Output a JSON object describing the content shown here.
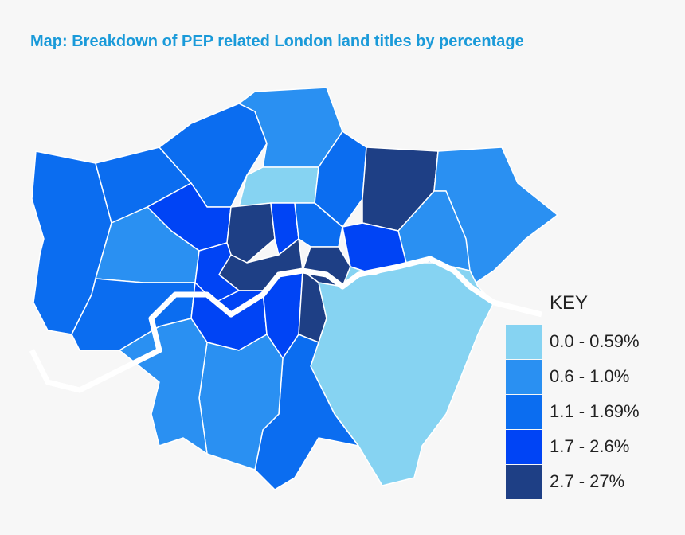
{
  "title": "Map:  Breakdown of PEP related London land titles by percentage",
  "key": {
    "title": "KEY",
    "items": [
      {
        "label": "0.0 - 0.59%",
        "color": "#86d3f2"
      },
      {
        "label": "0.6 - 1.0%",
        "color": "#2a90f2"
      },
      {
        "label": "1.1 - 1.69%",
        "color": "#0b6df0"
      },
      {
        "label": "1.7 - 2.6%",
        "color": "#0044f5"
      },
      {
        "label": "2.7 - 27%",
        "color": "#1e3f85"
      }
    ]
  }
}
